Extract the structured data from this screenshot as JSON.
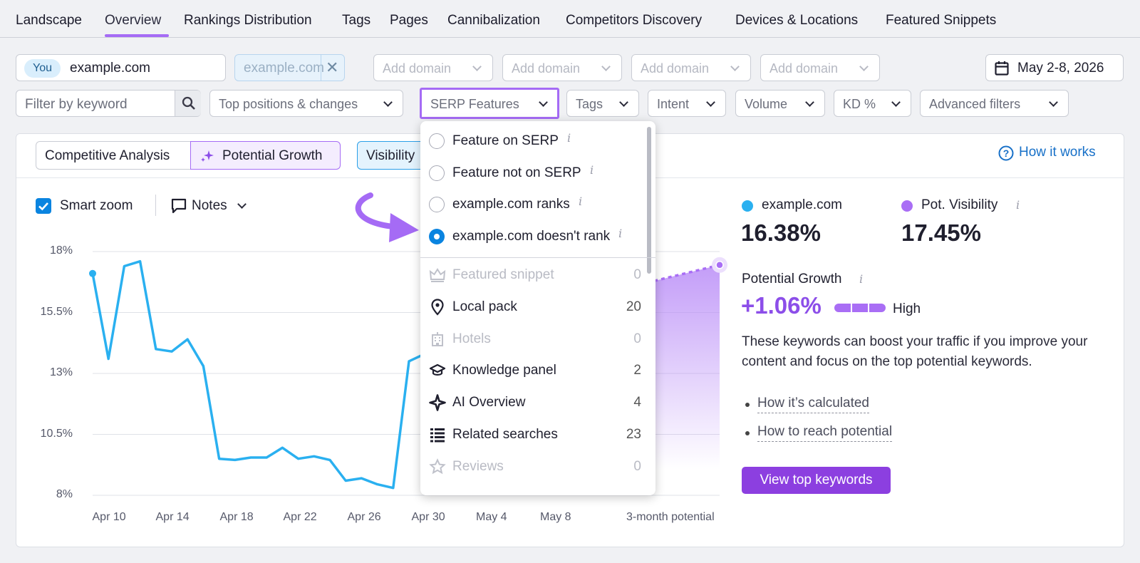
{
  "tabs": [
    "Landscape",
    "Overview",
    "Rankings Distribution",
    "Tags",
    "Pages",
    "Cannibalization",
    "Competitors Discovery",
    "Devices & Locations",
    "Featured Snippets"
  ],
  "domains": {
    "you_badge": "You",
    "primary": "example.com",
    "secondary": "example.com",
    "add_placeholder": "Add domain"
  },
  "date_range": "May 2-8, 2026",
  "filters": {
    "keyword_placeholder": "Filter by keyword",
    "positions": "Top positions & changes",
    "serp": "SERP Features",
    "tags": "Tags",
    "intent": "Intent",
    "volume": "Volume",
    "kd": "KD %",
    "advanced": "Advanced filters"
  },
  "modes": {
    "competitive": "Competitive Analysis",
    "potential": "Potential Growth",
    "visibility": "Visibility"
  },
  "how_it_works": "How it works",
  "chart_controls": {
    "smart_zoom": "Smart zoom",
    "notes": "Notes"
  },
  "serp_menu": {
    "radios": [
      {
        "label": "Feature on SERP",
        "selected": false
      },
      {
        "label": "Feature not on SERP",
        "selected": false
      },
      {
        "label": "example.com ranks",
        "selected": false
      },
      {
        "label": "example.com doesn't rank",
        "selected": true
      }
    ],
    "features": [
      {
        "label": "Featured snippet",
        "count": "0",
        "icon": "crown-icon",
        "enabled": false
      },
      {
        "label": "Local pack",
        "count": "20",
        "icon": "map-pin-icon",
        "enabled": true
      },
      {
        "label": "Hotels",
        "count": "0",
        "icon": "hotel-icon",
        "enabled": false
      },
      {
        "label": "Knowledge panel",
        "count": "2",
        "icon": "graduation-cap-icon",
        "enabled": true
      },
      {
        "label": "AI Overview",
        "count": "4",
        "icon": "ai-sparkle-icon",
        "enabled": true
      },
      {
        "label": "Related searches",
        "count": "23",
        "icon": "list-icon",
        "enabled": true
      },
      {
        "label": "Reviews",
        "count": "0",
        "icon": "star-icon",
        "enabled": false
      }
    ]
  },
  "stats": {
    "domain_label": "example.com",
    "domain_value": "16.38%",
    "domain_color": "#2ab0f0",
    "pot_label": "Pot. Visibility",
    "pot_value": "17.45%",
    "pot_color": "#a96ef5",
    "growth_label": "Potential Growth",
    "growth_value": "+1.06%",
    "growth_level": "High",
    "description": "These keywords can boost your traffic if you improve your content and focus on the top potential keywords.",
    "links": [
      "How it’s calculated",
      "How to reach potential"
    ],
    "cta": "View top keywords"
  },
  "chart_data": {
    "type": "line",
    "x": [
      "Apr 9",
      "Apr 10",
      "Apr 11",
      "Apr 12",
      "Apr 13",
      "Apr 14",
      "Apr 15",
      "Apr 16",
      "Apr 17",
      "Apr 18",
      "Apr 19",
      "Apr 20",
      "Apr 21",
      "Apr 22",
      "Apr 23",
      "Apr 24",
      "Apr 25",
      "Apr 26",
      "Apr 27",
      "Apr 28",
      "Apr 29",
      "Apr 30"
    ],
    "x_ticks": [
      "Apr 10",
      "Apr 14",
      "Apr 18",
      "Apr 22",
      "Apr 26",
      "Apr 30",
      "May 4",
      "May 8",
      "3-month potential"
    ],
    "y_ticks": [
      "18%",
      "15.5%",
      "13%",
      "10.5%",
      "8%"
    ],
    "ylim": [
      8,
      18
    ],
    "series": [
      {
        "name": "example.com",
        "color": "#2ab0f0",
        "values": [
          17.1,
          13.6,
          17.4,
          17.6,
          14.0,
          13.9,
          14.4,
          13.3,
          9.5,
          9.45,
          9.55,
          9.55,
          9.95,
          9.5,
          9.6,
          9.45,
          8.6,
          8.7,
          8.45,
          8.3,
          13.5,
          13.8
        ]
      }
    ],
    "potential": {
      "color": "#a96ef5",
      "values": [
        16.38,
        17.45
      ]
    },
    "grid": true
  }
}
